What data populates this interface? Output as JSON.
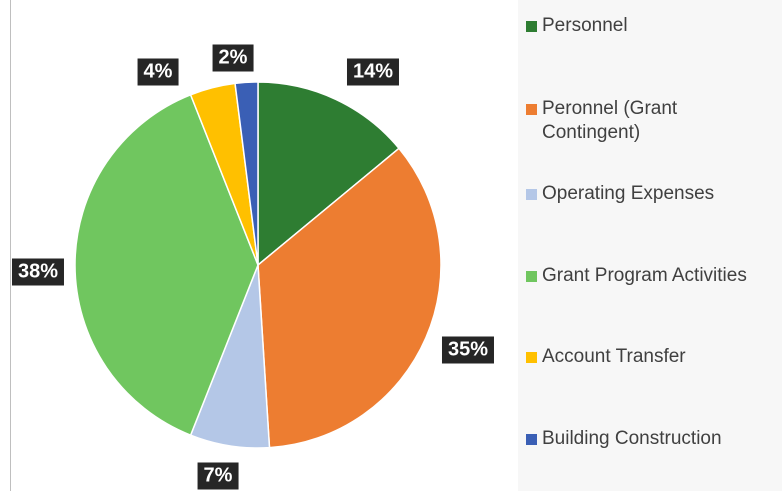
{
  "chart_data": {
    "type": "pie",
    "categories": [
      "Personnel",
      "Peronnel (Grant Contingent)",
      "Operating Expenses",
      "Grant Program Activities",
      "Account Transfer",
      "Building Construction"
    ],
    "values": [
      14,
      35,
      7,
      38,
      4,
      2
    ],
    "value_labels": [
      "14%",
      "35%",
      "7%",
      "38%",
      "4%",
      "2%"
    ],
    "colors": [
      "#2e7d32",
      "#ed7d31",
      "#b4c7e7",
      "#70c65f",
      "#ffc000",
      "#3a5fb5"
    ],
    "legend": "right"
  }
}
